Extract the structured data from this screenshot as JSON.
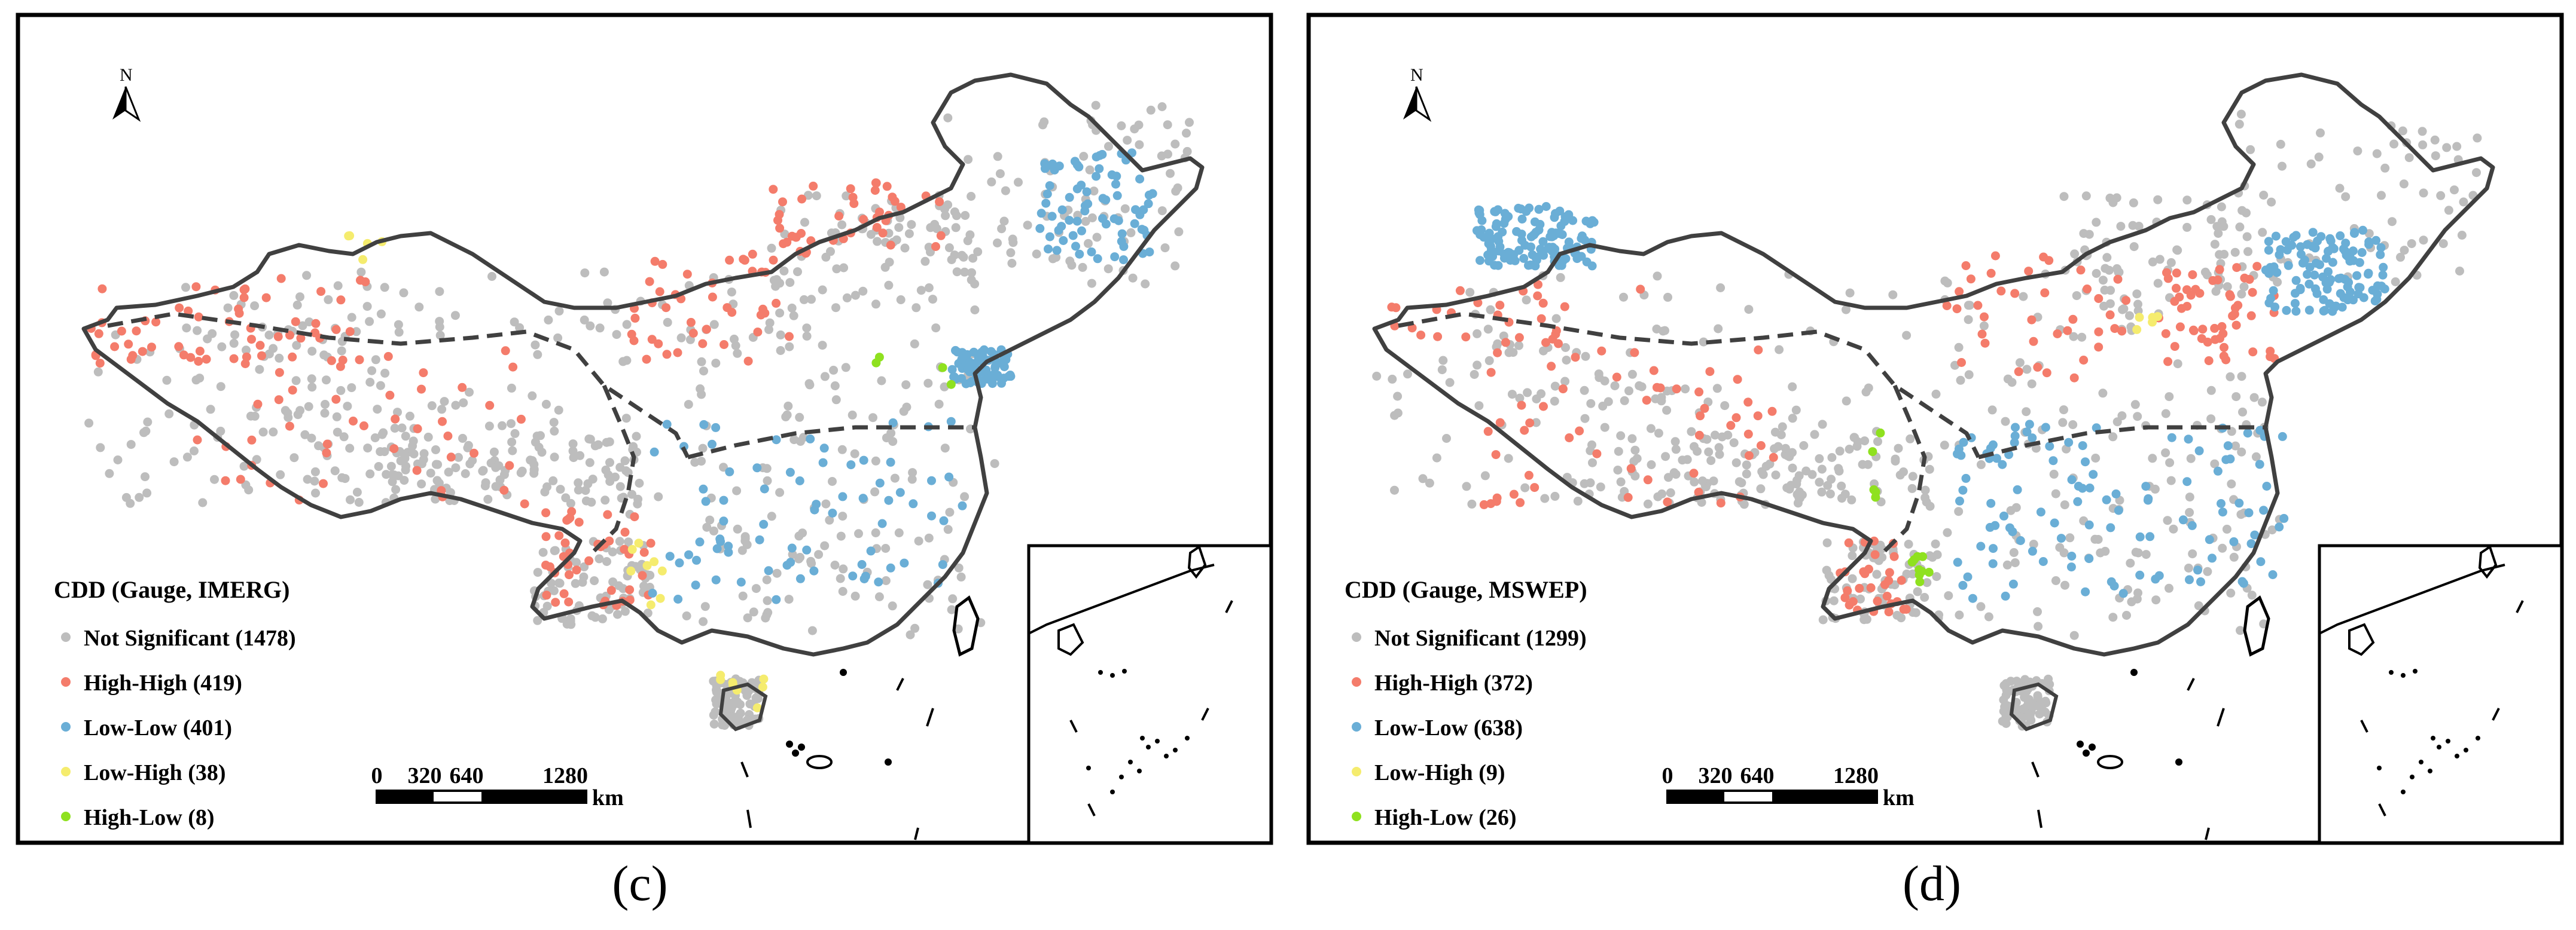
{
  "figure": {
    "panels": [
      {
        "id": "c",
        "caption": "(c)",
        "north": "N",
        "legend_title": "CDD (Gauge, IMERG)",
        "legend": [
          {
            "label": "Not Significant (1478)",
            "category": "not_significant",
            "count": 1478
          },
          {
            "label": "High-High (419)",
            "category": "high_high",
            "count": 419
          },
          {
            "label": "Low-Low (401)",
            "category": "low_low",
            "count": 401
          },
          {
            "label": "Low-High (38)",
            "category": "low_high",
            "count": 38
          },
          {
            "label": "High-Low (8)",
            "category": "high_low",
            "count": 8
          }
        ],
        "scale": {
          "ticks": [
            "0",
            "320",
            "640",
            "1280"
          ],
          "unit": "km"
        }
      },
      {
        "id": "d",
        "caption": "(d)",
        "north": "N",
        "legend_title": "CDD (Gauge, MSWEP)",
        "legend": [
          {
            "label": "Not Significant (1299)",
            "category": "not_significant",
            "count": 1299
          },
          {
            "label": "High-High (372)",
            "category": "high_high",
            "count": 372
          },
          {
            "label": "Low-Low (638)",
            "category": "low_low",
            "count": 638
          },
          {
            "label": "Low-High (9)",
            "category": "low_high",
            "count": 9
          },
          {
            "label": "High-Low (26)",
            "category": "high_low",
            "count": 26
          }
        ],
        "scale": {
          "ticks": [
            "0",
            "320",
            "640",
            "1280"
          ],
          "unit": "km"
        }
      }
    ]
  },
  "colors": {
    "not_significant": "#bdbdbd",
    "high_high": "#f47c6b",
    "low_low": "#6aaed6",
    "low_high": "#f5ec6e",
    "high_low": "#8fe11f",
    "outline": "#404040",
    "frame": "#000000"
  }
}
